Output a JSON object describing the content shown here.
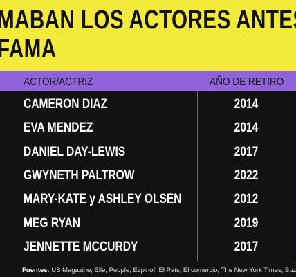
{
  "header": {
    "title_line1": "MABAN LOS ACTORES ANTES DE",
    "title_line2": "FAMA"
  },
  "table": {
    "columns": [
      "ACTOR/ACTRIZ",
      "AÑO DE RETIRO"
    ],
    "rows": [
      [
        "CAMERON DIAZ",
        2014
      ],
      [
        "EVA MENDEZ",
        2014
      ],
      [
        "DANIEL DAY-LEWIS",
        2017
      ],
      [
        "GWYNETH PALTROW",
        2022
      ],
      [
        "MARY-KATE y ASHLEY OLSEN",
        2012
      ],
      [
        "MEG RYAN",
        2019
      ],
      [
        "JENNETTE MCCURDY",
        2017
      ]
    ]
  },
  "footer": {
    "label": "Fuentes:",
    "text": "US Magazine, Elle, People, Espinof, El País, El comercio, The New York Times, Buzzfeed, Co"
  }
}
